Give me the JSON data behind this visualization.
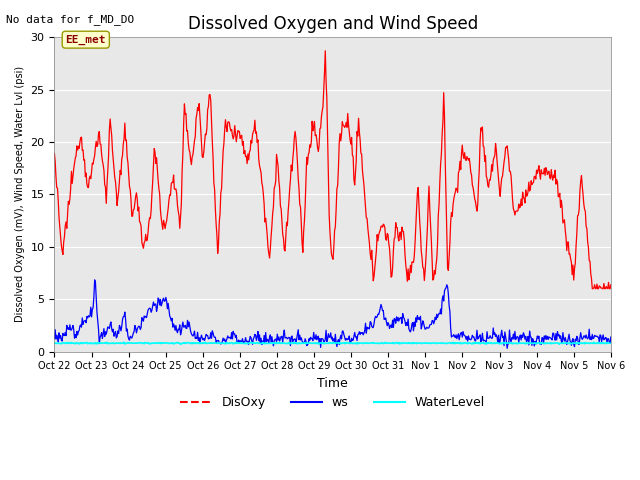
{
  "title": "Dissolved Oxygen and Wind Speed",
  "top_left_text": "No data for f_MD_DO",
  "ylabel": "Dissolved Oxygen (mV), Wind Speed, Water Lvl (psi)",
  "xlabel": "Time",
  "ylim": [
    0,
    30
  ],
  "bg_color": "#e8e8e8",
  "fig_color": "#ffffff",
  "annotation_box": "EE_met",
  "xtick_labels": [
    "Oct 22",
    "Oct 23",
    "Oct 24",
    "Oct 25",
    "Oct 26",
    "Oct 27",
    "Oct 28",
    "Oct 29",
    "Oct 30",
    "Oct 31",
    "Nov 1",
    "Nov 2",
    "Nov 3",
    "Nov 4",
    "Nov 5",
    "Nov 6"
  ],
  "ytick_vals": [
    0,
    5,
    10,
    15,
    20,
    25,
    30
  ],
  "disoxy_color": "red",
  "ws_color": "blue",
  "wl_color": "cyan",
  "grid_color": "white",
  "title_fontsize": 12,
  "ylabel_fontsize": 7,
  "xlabel_fontsize": 9,
  "xtick_fontsize": 7,
  "ytick_fontsize": 8,
  "legend_fontsize": 9
}
